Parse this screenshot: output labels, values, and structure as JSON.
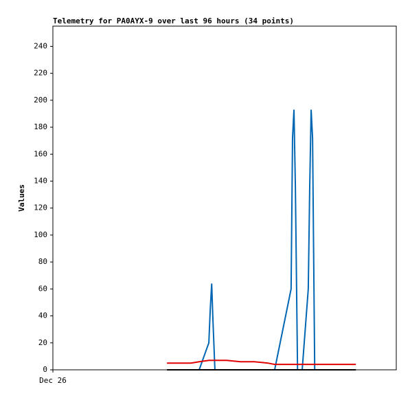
{
  "chart_data": {
    "type": "line",
    "title": "Telemetry for PA0AYX-9 over last 96 hours (34 points)",
    "ylabel": "Values",
    "x": [
      31.9,
      35.1,
      38.6,
      40.9,
      43.6,
      44.0,
      44.4,
      44.7,
      45.3,
      48.6,
      52.4,
      56.3,
      60.1,
      62.0,
      66.6,
      67.0,
      67.4,
      67.8,
      68.4,
      69.7,
      71.4,
      71.8,
      72.2,
      72.6,
      73.2,
      74.5,
      76.4,
      78.3,
      80.3,
      81.2,
      82.2,
      83.1,
      84.1,
      84.7
    ],
    "series": [
      {
        "color": "#000000",
        "values": [
          0,
          0,
          0,
          0,
          0,
          0,
          0,
          0,
          0,
          0,
          0,
          0,
          0,
          0,
          0,
          0,
          0,
          0,
          0,
          0,
          0,
          0,
          0,
          0,
          0,
          0,
          0,
          0,
          0,
          0,
          0,
          0,
          0,
          0
        ]
      },
      {
        "color": "#e00000",
        "values": [
          5,
          5,
          5,
          6,
          7,
          7,
          7,
          7,
          7,
          7,
          6,
          6,
          5,
          4,
          4,
          4,
          4,
          4,
          4,
          4,
          4,
          4,
          4,
          4,
          4,
          4,
          4,
          4,
          4,
          4,
          4,
          4,
          4,
          4
        ]
      },
      {
        "color": "#0066b3",
        "values": [
          0,
          0,
          0,
          0,
          20,
          45,
          64,
          40,
          0,
          0,
          0,
          0,
          0,
          0,
          60,
          172,
          193,
          135,
          0,
          0,
          60,
          135,
          193,
          172,
          0,
          0,
          0,
          0,
          0,
          0,
          0,
          0,
          0,
          0
        ]
      }
    ],
    "xlim": [
      0,
      96
    ],
    "xticks": [
      {
        "value": 0,
        "label": "Dec 26"
      }
    ],
    "ylim": [
      0,
      255
    ],
    "yticks": [
      0,
      20,
      40,
      60,
      80,
      100,
      120,
      140,
      160,
      180,
      200,
      220,
      240
    ],
    "grid": false
  }
}
